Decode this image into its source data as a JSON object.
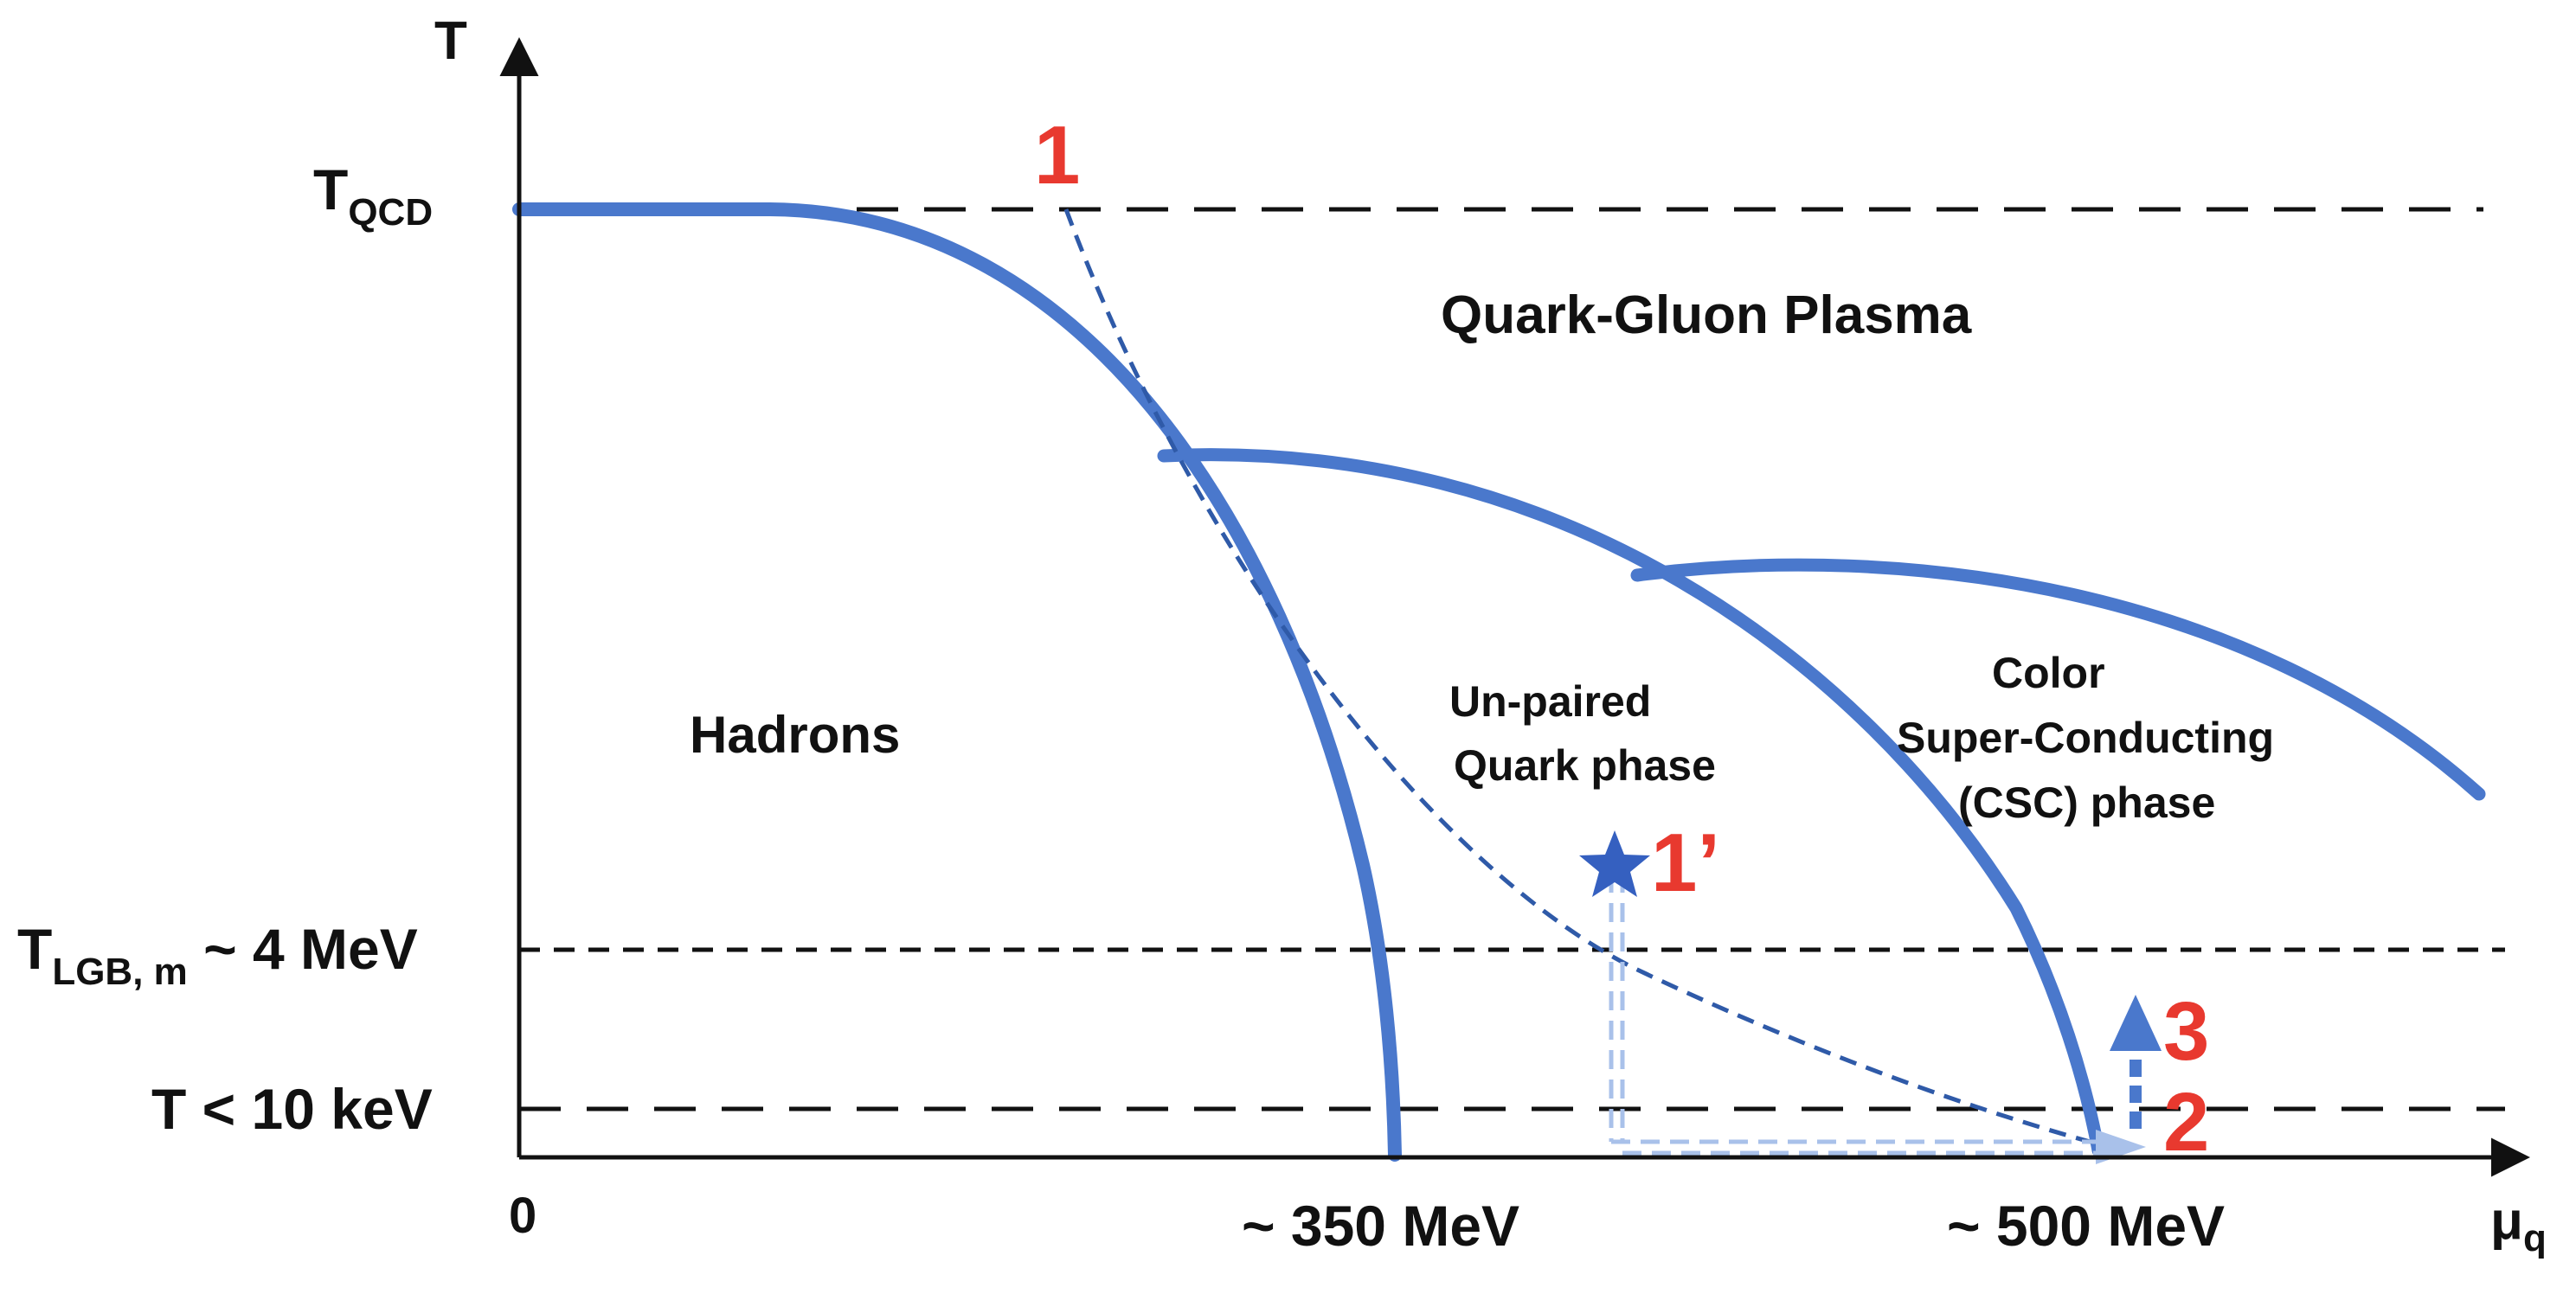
{
  "axes": {
    "y_label": "T",
    "x_label_main": "μ",
    "x_label_sub": "q",
    "origin_label": "0"
  },
  "y_ticks": {
    "tqcd": {
      "main": "T",
      "sub": "QCD"
    },
    "tlgb": {
      "main": "T",
      "sub": "LGB, m",
      "suffix": " ~ 4 MeV"
    },
    "t10kev": {
      "text": "T < 10 keV"
    }
  },
  "x_ticks": {
    "mev350": "~ 350 MeV",
    "mev500": "~ 500 MeV"
  },
  "regions": {
    "qgp": "Quark-Gluon Plasma",
    "hadrons": "Hadrons",
    "unpaired": [
      "Un-paired",
      "Quark phase"
    ],
    "csc": [
      "Color",
      "Super-Conducting",
      "(CSC) phase"
    ]
  },
  "markers": {
    "m1": "1",
    "m1p": "1’",
    "m2": "2",
    "m3": "3"
  },
  "colors": {
    "phase_boundary": "#4a78cc",
    "trajectory": "#2f5aa8",
    "path_light": "#a9c1ea",
    "marker_number": "#e8392f",
    "axis": "#111111"
  }
}
